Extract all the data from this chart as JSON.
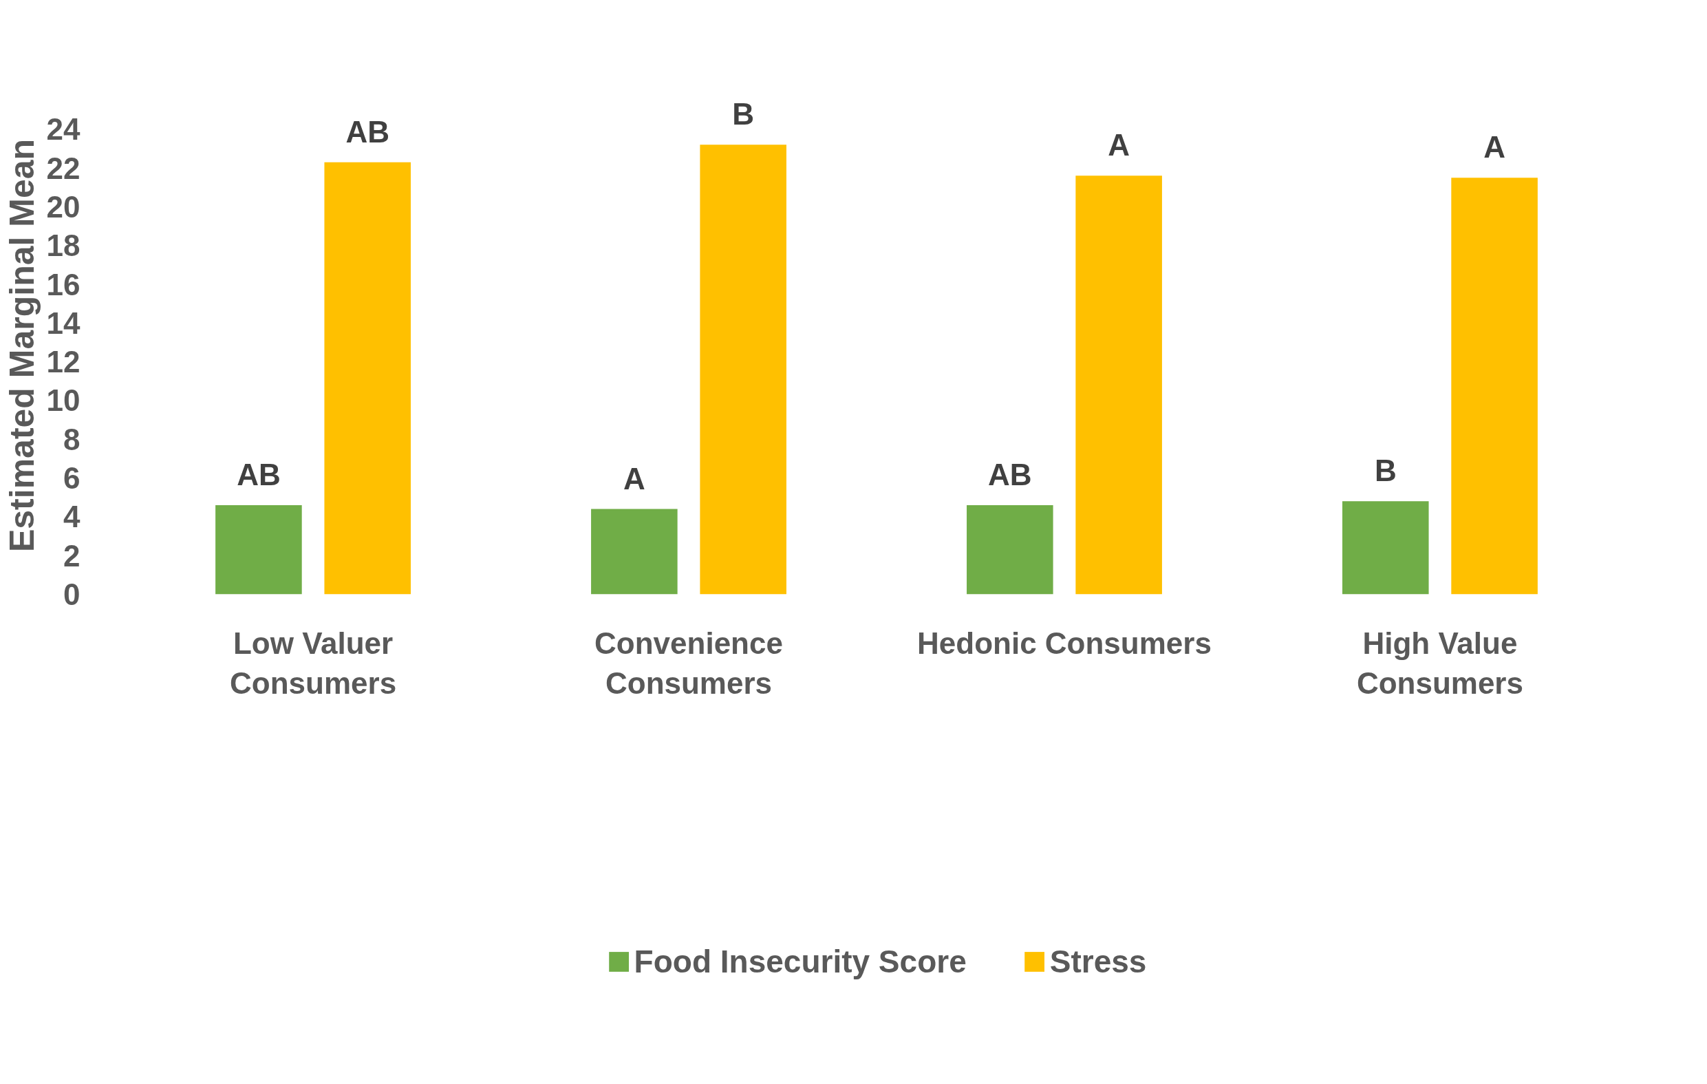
{
  "chart_data": {
    "type": "bar",
    "ylabel": "Estimated Marginal Mean",
    "categories": [
      "Low Valuer Consumers",
      "Convenience Consumers",
      "Hedonic Consumers",
      "High Value Consumers"
    ],
    "series": [
      {
        "name": "Food Insecurity Score",
        "color": "#70ad47",
        "values": [
          4.6,
          4.4,
          4.6,
          4.8
        ],
        "value_labels": [
          "AB",
          "A",
          "AB",
          "B"
        ]
      },
      {
        "name": "Stress",
        "color": "#ffc000",
        "values": [
          22.3,
          23.2,
          21.6,
          21.5
        ],
        "value_labels": [
          "AB",
          "B",
          "A",
          "A"
        ]
      }
    ],
    "ylim": [
      0,
      24
    ],
    "yticks": [
      0,
      2,
      4,
      6,
      8,
      10,
      12,
      14,
      16,
      18,
      20,
      22,
      24
    ],
    "grid": false,
    "legend": "bottom"
  }
}
